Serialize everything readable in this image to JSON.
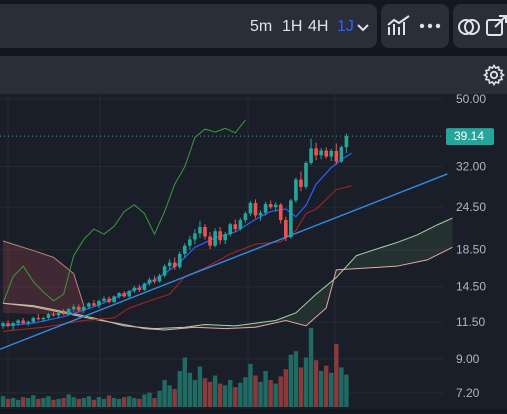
{
  "toolbar": {
    "timeframes": [
      "5m",
      "1H",
      "4H",
      "1J"
    ],
    "active_timeframe": "1J"
  },
  "chart_data": {
    "type": "candlestick",
    "price_axis_ticks": [
      50.0,
      32.0,
      24.5,
      18.5,
      14.5,
      11.5,
      9.0,
      7.2
    ],
    "log_scale": true,
    "y_range": [
      7.0,
      55.0
    ],
    "last_price": "39.14",
    "colors": {
      "up": "#26a69a",
      "down": "#ef5350",
      "volume_up": "#1f6b63",
      "volume_down": "#8b3a3a",
      "trendline": "#2f8be6",
      "lagging_span": "#3a9a3a",
      "kijun": "#b02424",
      "tenkan": "#2962ff",
      "cloud_lead_a": "#a5d6a7",
      "cloud_lead_b": "#e8a6a6",
      "price_tag": "#26a69a"
    },
    "candles": [
      [
        11.2,
        11.5,
        11.0,
        11.4
      ],
      [
        11.4,
        11.6,
        11.1,
        11.2
      ],
      [
        11.2,
        11.5,
        10.9,
        11.4
      ],
      [
        11.4,
        11.7,
        11.2,
        11.6
      ],
      [
        11.6,
        11.8,
        11.3,
        11.4
      ],
      [
        11.4,
        11.6,
        11.2,
        11.5
      ],
      [
        11.5,
        11.9,
        11.4,
        11.8
      ],
      [
        11.8,
        12.1,
        11.6,
        11.7
      ],
      [
        11.7,
        11.9,
        11.5,
        11.8
      ],
      [
        11.8,
        12.2,
        11.7,
        12.1
      ],
      [
        12.1,
        12.4,
        11.9,
        12.0
      ],
      [
        12.0,
        12.3,
        11.8,
        12.2
      ],
      [
        12.2,
        12.5,
        12.0,
        12.1
      ],
      [
        12.1,
        12.6,
        12.0,
        12.5
      ],
      [
        12.5,
        12.9,
        12.3,
        12.7
      ],
      [
        12.7,
        12.9,
        12.3,
        12.4
      ],
      [
        12.4,
        12.8,
        12.2,
        12.7
      ],
      [
        12.7,
        13.1,
        12.5,
        13.0
      ],
      [
        13.0,
        13.3,
        12.7,
        12.8
      ],
      [
        12.8,
        13.3,
        12.6,
        13.2
      ],
      [
        13.2,
        13.6,
        13.0,
        13.4
      ],
      [
        13.4,
        13.6,
        13.0,
        13.1
      ],
      [
        13.1,
        13.7,
        13.0,
        13.6
      ],
      [
        13.6,
        14.0,
        13.4,
        13.9
      ],
      [
        13.9,
        14.1,
        13.5,
        13.6
      ],
      [
        13.6,
        14.2,
        13.5,
        14.1
      ],
      [
        14.1,
        14.6,
        13.9,
        14.4
      ],
      [
        14.4,
        14.7,
        14.0,
        14.2
      ],
      [
        14.2,
        14.9,
        14.1,
        14.8
      ],
      [
        14.8,
        15.4,
        14.6,
        15.2
      ],
      [
        15.2,
        15.6,
        14.8,
        15.0
      ],
      [
        15.0,
        15.8,
        14.9,
        15.6
      ],
      [
        15.6,
        16.8,
        15.4,
        16.6
      ],
      [
        16.6,
        17.4,
        16.2,
        17.0
      ],
      [
        17.0,
        17.6,
        16.2,
        16.5
      ],
      [
        16.5,
        18.3,
        16.3,
        18.0
      ],
      [
        18.0,
        19.3,
        17.6,
        19.0
      ],
      [
        19.0,
        20.3,
        18.5,
        19.8
      ],
      [
        19.8,
        21.2,
        19.2,
        20.6
      ],
      [
        20.6,
        22.4,
        20.0,
        21.5
      ],
      [
        21.5,
        21.9,
        19.8,
        20.2
      ],
      [
        20.2,
        20.8,
        18.6,
        19.0
      ],
      [
        19.0,
        21.3,
        18.8,
        20.9
      ],
      [
        20.9,
        21.5,
        19.2,
        19.7
      ],
      [
        19.7,
        20.8,
        19.2,
        20.5
      ],
      [
        20.5,
        22.1,
        20.2,
        21.9
      ],
      [
        21.9,
        22.6,
        20.8,
        21.2
      ],
      [
        21.2,
        22.8,
        21.0,
        22.5
      ],
      [
        22.5,
        23.8,
        22.1,
        23.5
      ],
      [
        23.5,
        25.5,
        23.1,
        25.2
      ],
      [
        25.2,
        25.8,
        22.8,
        23.2
      ],
      [
        23.2,
        24.0,
        22.4,
        23.6
      ],
      [
        23.6,
        25.4,
        23.2,
        25.0
      ],
      [
        25.0,
        25.6,
        24.2,
        24.5
      ],
      [
        24.5,
        25.3,
        23.8,
        24.9
      ],
      [
        24.9,
        25.2,
        22.0,
        22.5
      ],
      [
        22.5,
        23.0,
        19.6,
        20.1
      ],
      [
        20.1,
        25.9,
        19.9,
        25.6
      ],
      [
        25.6,
        29.8,
        25.2,
        29.4
      ],
      [
        29.4,
        31.0,
        27.2,
        28.0
      ],
      [
        28.0,
        33.2,
        27.6,
        32.8
      ],
      [
        32.8,
        38.5,
        32.4,
        36.1
      ],
      [
        36.1,
        37.5,
        33.4,
        34.5
      ],
      [
        34.5,
        36.2,
        33.6,
        35.6
      ],
      [
        35.6,
        36.4,
        33.8,
        34.2
      ],
      [
        34.2,
        36.0,
        33.2,
        35.5
      ],
      [
        35.5,
        37.3,
        32.4,
        33.1
      ],
      [
        33.1,
        36.8,
        32.8,
        36.4
      ],
      [
        36.4,
        39.8,
        35.0,
        39.14
      ]
    ],
    "volumes": [
      0.12,
      0.09,
      0.1,
      0.08,
      0.11,
      0.1,
      0.13,
      0.09,
      0.1,
      0.12,
      0.08,
      0.09,
      0.1,
      0.14,
      0.11,
      0.09,
      0.1,
      0.12,
      0.08,
      0.11,
      0.09,
      0.13,
      0.1,
      0.09,
      0.11,
      0.12,
      0.1,
      0.09,
      0.14,
      0.16,
      0.1,
      0.18,
      0.3,
      0.24,
      0.2,
      0.4,
      0.55,
      0.38,
      0.3,
      0.45,
      0.32,
      0.28,
      0.35,
      0.26,
      0.24,
      0.3,
      0.22,
      0.27,
      0.33,
      0.48,
      0.35,
      0.28,
      0.4,
      0.3,
      0.26,
      0.34,
      0.42,
      0.58,
      0.62,
      0.44,
      0.55,
      0.88,
      0.52,
      0.4,
      0.46,
      0.38,
      0.7,
      0.44,
      0.36
    ],
    "trendline": {
      "from": [
        0,
        9.6
      ],
      "to": [
        88,
        30.5
      ]
    },
    "lagging_span": [
      [
        0,
        13.0
      ],
      [
        2,
        15.5
      ],
      [
        4,
        16.6
      ],
      [
        6,
        15.0
      ],
      [
        8,
        14.0
      ],
      [
        10,
        13.2
      ],
      [
        12,
        13.8
      ],
      [
        14,
        17.8
      ],
      [
        16,
        19.8
      ],
      [
        18,
        21.2
      ],
      [
        20,
        20.5
      ],
      [
        22,
        21.6
      ],
      [
        24,
        23.8
      ],
      [
        26,
        24.9
      ],
      [
        28,
        23.5
      ],
      [
        30,
        20.5
      ],
      [
        32,
        23.8
      ],
      [
        34,
        28.5
      ],
      [
        36,
        32.0
      ],
      [
        38,
        38.8
      ],
      [
        40,
        41.0
      ],
      [
        42,
        40.2
      ],
      [
        44,
        41.2
      ],
      [
        46,
        40.0
      ],
      [
        48,
        43.5
      ]
    ],
    "kijun": [
      [
        0,
        10.8
      ],
      [
        8,
        11.1
      ],
      [
        16,
        11.6
      ],
      [
        22,
        11.8
      ],
      [
        25,
        12.6
      ],
      [
        29,
        13.2
      ],
      [
        33,
        13.8
      ],
      [
        36,
        15.5
      ],
      [
        40,
        16.4
      ],
      [
        45,
        18.0
      ],
      [
        50,
        19.2
      ],
      [
        55,
        19.5
      ],
      [
        58,
        21.0
      ],
      [
        60,
        23.5
      ],
      [
        62,
        24.2
      ],
      [
        66,
        27.5
      ],
      [
        69,
        28.2
      ]
    ],
    "tenkan": [
      [
        0,
        11.2
      ],
      [
        6,
        11.4
      ],
      [
        12,
        11.9
      ],
      [
        18,
        12.7
      ],
      [
        24,
        13.8
      ],
      [
        28,
        14.6
      ],
      [
        32,
        15.8
      ],
      [
        35,
        17.0
      ],
      [
        38,
        18.8
      ],
      [
        42,
        20.0
      ],
      [
        46,
        20.8
      ],
      [
        50,
        22.6
      ],
      [
        53,
        23.8
      ],
      [
        56,
        24.2
      ],
      [
        58,
        23.0
      ],
      [
        60,
        24.8
      ],
      [
        62,
        28.5
      ],
      [
        65,
        31.8
      ],
      [
        67,
        33.5
      ],
      [
        69,
        35.0
      ]
    ],
    "cloud_lead_a": [
      [
        0,
        13.0
      ],
      [
        6,
        12.8
      ],
      [
        12,
        12.3
      ],
      [
        18,
        11.8
      ],
      [
        24,
        11.2
      ],
      [
        30,
        11.0
      ],
      [
        36,
        11.1
      ],
      [
        40,
        11.3
      ],
      [
        46,
        11.2
      ],
      [
        50,
        11.4
      ],
      [
        54,
        11.6
      ],
      [
        58,
        12.2
      ],
      [
        62,
        13.8
      ],
      [
        66,
        15.4
      ],
      [
        70,
        17.8
      ],
      [
        74,
        18.6
      ],
      [
        78,
        19.4
      ],
      [
        82,
        20.4
      ],
      [
        86,
        21.8
      ],
      [
        89,
        22.8
      ]
    ],
    "cloud_lead_b": [
      [
        0,
        13.0
      ],
      [
        6,
        12.7
      ],
      [
        12,
        12.2
      ],
      [
        18,
        11.7
      ],
      [
        24,
        11.3
      ],
      [
        28,
        11.0
      ],
      [
        32,
        10.9
      ],
      [
        38,
        11.1
      ],
      [
        44,
        11.0
      ],
      [
        50,
        11.1
      ],
      [
        56,
        11.6
      ],
      [
        60,
        11.2
      ],
      [
        64,
        12.6
      ],
      [
        66,
        16.2
      ],
      [
        72,
        16.4
      ],
      [
        78,
        16.6
      ],
      [
        84,
        17.3
      ],
      [
        89,
        18.8
      ]
    ]
  }
}
